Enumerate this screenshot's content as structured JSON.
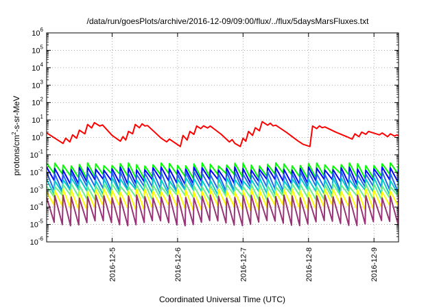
{
  "chart_data": {
    "type": "line",
    "title": "/data/run/goesPlots/archive/2016-12-09/09:00/flux/../flux/5daysMarsFluxes.txt",
    "xlabel": "Coordinated Universal Time (UTC)",
    "ylabel": {
      "pre": "protons/cm",
      "sup": "2",
      "post": "-s-sr-MeV"
    },
    "xlim": [
      "2016-12-04T00:00",
      "2016-12-09T09:00"
    ],
    "x_ticks": [
      "2016-12-5",
      "2016-12-6",
      "2016-12-7",
      "2016-12-8",
      "2016-12-9"
    ],
    "y_scale": "log",
    "ylim": [
      1e-06,
      1000000.0
    ],
    "y_ticks": [
      {
        "base": "10",
        "exp": "-6"
      },
      {
        "base": "10",
        "exp": "-5"
      },
      {
        "base": "10",
        "exp": "-4"
      },
      {
        "base": "10",
        "exp": "-3"
      },
      {
        "base": "10",
        "exp": "-2"
      },
      {
        "base": "10",
        "exp": "-1"
      },
      {
        "base": "10",
        "exp": "0"
      },
      {
        "base": "10",
        "exp": "1"
      },
      {
        "base": "10",
        "exp": "2"
      },
      {
        "base": "10",
        "exp": "3"
      },
      {
        "base": "10",
        "exp": "4"
      },
      {
        "base": "10",
        "exp": "5"
      },
      {
        "base": "10",
        "exp": "6"
      }
    ],
    "grid": true,
    "series": [
      {
        "color": "#ff0000",
        "pattern": "staircase",
        "points": [
          [
            "2016-12-04T00:00",
            1.8
          ],
          [
            "2016-12-04T06:00",
            0.45
          ],
          [
            "2016-12-04T07:00",
            0.9
          ],
          [
            "2016-12-04T08:30",
            0.55
          ],
          [
            "2016-12-04T09:30",
            1.4
          ],
          [
            "2016-12-04T11:00",
            0.9
          ],
          [
            "2016-12-04T12:00",
            2.6
          ],
          [
            "2016-12-04T14:00",
            1.6
          ],
          [
            "2016-12-04T15:00",
            5.5
          ],
          [
            "2016-12-04T16:30",
            3.5
          ],
          [
            "2016-12-04T17:30",
            7.0
          ],
          [
            "2016-12-04T19:30",
            4.5
          ],
          [
            "2016-12-04T20:30",
            5.2
          ],
          [
            "2016-12-05T00:00",
            1.3
          ],
          [
            "2016-12-05T03:00",
            0.6
          ],
          [
            "2016-12-05T04:00",
            1.1
          ],
          [
            "2016-12-05T05:00",
            0.7
          ],
          [
            "2016-12-05T06:00",
            2.2
          ],
          [
            "2016-12-05T07:30",
            1.6
          ],
          [
            "2016-12-05T08:30",
            5.5
          ],
          [
            "2016-12-05T10:00",
            3.6
          ],
          [
            "2016-12-05T11:00",
            6.0
          ],
          [
            "2016-12-05T12:00",
            4.5
          ],
          [
            "2016-12-05T13:00",
            4.8
          ],
          [
            "2016-12-05T18:00",
            0.9
          ],
          [
            "2016-12-05T20:00",
            0.55
          ],
          [
            "2016-12-05T21:00",
            0.8
          ],
          [
            "2016-12-06T01:00",
            0.3
          ],
          [
            "2016-12-06T02:00",
            1.3
          ],
          [
            "2016-12-06T03:30",
            0.7
          ],
          [
            "2016-12-06T04:30",
            2.2
          ],
          [
            "2016-12-06T06:00",
            1.5
          ],
          [
            "2016-12-06T07:00",
            4.5
          ],
          [
            "2016-12-06T08:30",
            3.2
          ],
          [
            "2016-12-06T09:30",
            4.6
          ],
          [
            "2016-12-06T11:00",
            3.5
          ],
          [
            "2016-12-06T12:00",
            4.5
          ],
          [
            "2016-12-06T16:00",
            1.5
          ],
          [
            "2016-12-06T19:00",
            0.55
          ],
          [
            "2016-12-06T20:00",
            0.75
          ],
          [
            "2016-12-06T21:00",
            0.45
          ],
          [
            "2016-12-06T23:00",
            0.3
          ],
          [
            "2016-12-07T00:00",
            0.9
          ],
          [
            "2016-12-07T01:00",
            0.6
          ],
          [
            "2016-12-07T02:00",
            2.2
          ],
          [
            "2016-12-07T03:30",
            1.3
          ],
          [
            "2016-12-07T04:30",
            3.6
          ],
          [
            "2016-12-07T06:00",
            2.4
          ],
          [
            "2016-12-07T07:00",
            8.0
          ],
          [
            "2016-12-07T09:00",
            5.0
          ],
          [
            "2016-12-07T10:00",
            6.5
          ],
          [
            "2016-12-07T11:00",
            4.6
          ],
          [
            "2016-12-07T12:00",
            5.0
          ],
          [
            "2016-12-07T16:00",
            1.9
          ],
          [
            "2016-12-07T20:00",
            0.65
          ],
          [
            "2016-12-07T22:00",
            0.4
          ],
          [
            "2016-12-08T00:30",
            0.3
          ],
          [
            "2016-12-08T01:30",
            4.5
          ],
          [
            "2016-12-08T03:00",
            3.2
          ],
          [
            "2016-12-08T04:00",
            4.6
          ],
          [
            "2016-12-08T05:00",
            3.6
          ],
          [
            "2016-12-08T06:00",
            4.0
          ],
          [
            "2016-12-08T10:00",
            2.0
          ],
          [
            "2016-12-08T14:00",
            1.1
          ],
          [
            "2016-12-08T16:00",
            0.8
          ],
          [
            "2016-12-08T17:00",
            1.6
          ],
          [
            "2016-12-08T18:30",
            1.1
          ],
          [
            "2016-12-08T19:30",
            2.0
          ],
          [
            "2016-12-08T21:00",
            1.5
          ],
          [
            "2016-12-08T22:00",
            2.2
          ],
          [
            "2016-12-09T02:00",
            1.4
          ],
          [
            "2016-12-09T03:00",
            1.8
          ],
          [
            "2016-12-09T05:00",
            1.1
          ],
          [
            "2016-12-09T06:00",
            1.6
          ],
          [
            "2016-12-09T07:30",
            1.2
          ],
          [
            "2016-12-09T08:30",
            1.4
          ],
          [
            "2016-12-09T09:00",
            1.2
          ]
        ]
      },
      {
        "color": "#00ff00",
        "pattern": "sawtooth",
        "high": 0.028,
        "low": 0.006,
        "period_hours": 3
      },
      {
        "color": "#0000ff",
        "pattern": "sawtooth",
        "high": 0.016,
        "low": 0.0028,
        "period_hours": 3
      },
      {
        "color": "#2266ee",
        "pattern": "sawtooth",
        "high": 0.009,
        "low": 0.0011,
        "period_hours": 3
      },
      {
        "color": "#00cccc",
        "pattern": "sawtooth",
        "high": 0.004,
        "low": 0.0007,
        "period_hours": 3
      },
      {
        "color": "#66ee88",
        "pattern": "sawtooth",
        "high": 0.0018,
        "low": 0.00035,
        "period_hours": 3
      },
      {
        "color": "#ffff00",
        "pattern": "sawtooth",
        "high": 0.0009,
        "low": 9e-05,
        "period_hours": 3
      },
      {
        "color": "#993377",
        "pattern": "sawtooth",
        "high": 0.0004,
        "low": 1.2e-05,
        "period_hours": 3
      }
    ]
  }
}
